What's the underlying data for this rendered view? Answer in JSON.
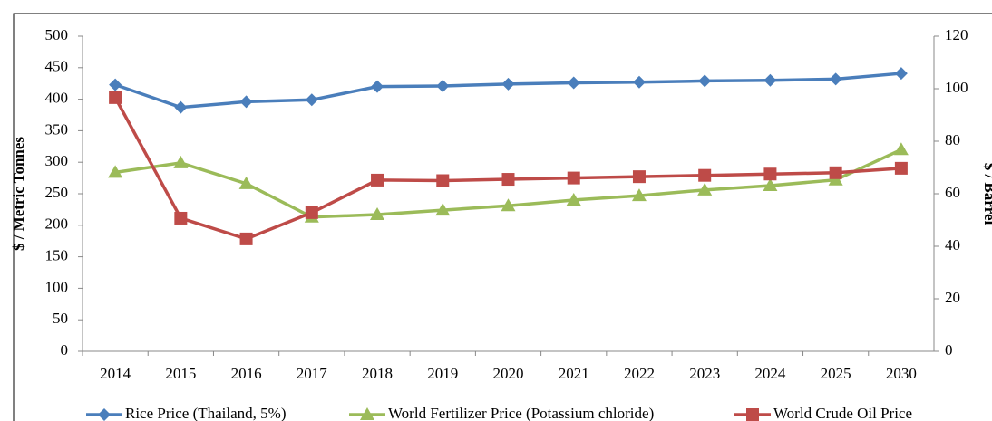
{
  "chart_data": {
    "type": "line",
    "y_label": "$ / Metric Tonnes",
    "y2_label": "$ / Barrel",
    "categories": [
      "2014",
      "2015",
      "2016",
      "2017",
      "2018",
      "2019",
      "2020",
      "2021",
      "2022",
      "2023",
      "2024",
      "2025",
      "2030"
    ],
    "ylim": [
      0,
      500
    ],
    "yticks": [
      0,
      50,
      100,
      150,
      200,
      250,
      300,
      350,
      400,
      450,
      500
    ],
    "y2lim": [
      0,
      120
    ],
    "y2ticks": [
      0,
      20,
      40,
      60,
      80,
      100,
      120
    ],
    "grid": false,
    "legend": "bottom",
    "series": [
      {
        "name": "Rice Price (Thailand, 5%)",
        "color": "#4a7ebb",
        "marker": "diamond",
        "values": [
          423,
          387,
          396,
          399,
          420,
          421,
          424,
          426,
          427,
          429,
          430,
          432,
          441
        ]
      },
      {
        "name": "World Fertilizer Price (Potassium chloride)",
        "color": "#9bbb59",
        "marker": "triangle",
        "values": [
          284,
          299,
          266,
          213,
          217,
          224,
          231,
          240,
          247,
          256,
          263,
          272,
          320
        ]
      },
      {
        "name": "World Crude Oil Price",
        "color": "#be4b48",
        "marker": "square",
        "axis": "y2",
        "values": [
          96.6,
          50.7,
          42.8,
          52.8,
          65.2,
          65,
          65.5,
          66,
          66.5,
          67,
          67.5,
          68,
          69.7
        ]
      }
    ]
  }
}
